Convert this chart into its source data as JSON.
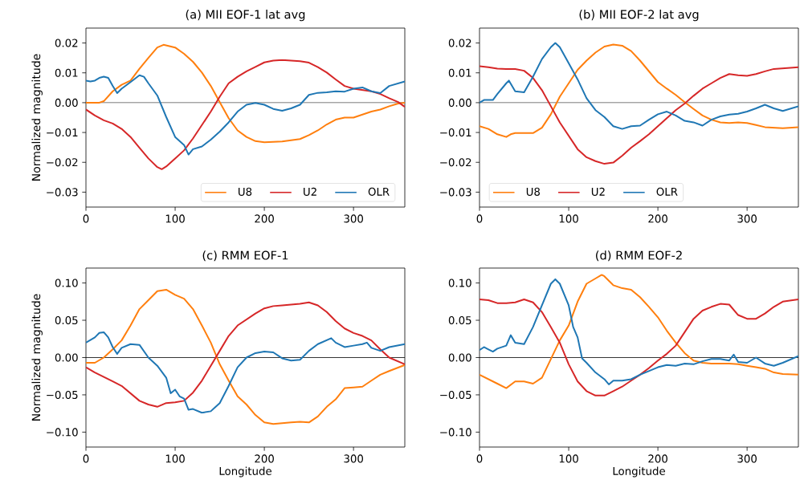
{
  "chart_data": [
    {
      "type": "line",
      "title": "(a) MII EOF-1 lat avg",
      "ylabel": "Normalized magnitude",
      "xlim": [
        0,
        357.5
      ],
      "ylim": [
        -0.035,
        0.025
      ],
      "xticks": [
        0,
        100,
        200,
        300
      ],
      "yticks": [
        {
          "value": -0.03,
          "label": "−0.03"
        },
        {
          "value": -0.02,
          "label": "−0.02"
        },
        {
          "value": -0.01,
          "label": "−0.01"
        },
        {
          "value": 0,
          "label": "0.00"
        },
        {
          "value": 0.01,
          "label": "0.01"
        },
        {
          "value": 0.02,
          "label": "0.02"
        }
      ],
      "legend": "bottom right",
      "ref_lines": [
        {
          "axis": "y",
          "value": 0,
          "color": "#000000"
        }
      ],
      "series": [
        {
          "name": "U8",
          "color": "#ff7f0e",
          "x": [
            0,
            15,
            20,
            30,
            40,
            50,
            60,
            70,
            80,
            87,
            100,
            110,
            120,
            130,
            140,
            150,
            160,
            170,
            180,
            190,
            200,
            220,
            240,
            250,
            260,
            270,
            280,
            290,
            300,
            310,
            320,
            330,
            340,
            350,
            357.5
          ],
          "values": [
            0.0,
            0.0,
            0.0005,
            0.0038,
            0.006,
            0.0074,
            0.0114,
            0.015,
            0.0185,
            0.0194,
            0.0185,
            0.0164,
            0.0137,
            0.0101,
            0.0056,
            0.0002,
            -0.0052,
            -0.0093,
            -0.0115,
            -0.0129,
            -0.0133,
            -0.013,
            -0.0122,
            -0.0109,
            -0.0093,
            -0.0073,
            -0.0057,
            -0.005,
            -0.005,
            -0.004,
            -0.003,
            -0.0023,
            -0.0012,
            -0.0003,
            0.0
          ]
        },
        {
          "name": "U2",
          "color": "#d62728",
          "x": [
            0,
            10,
            20,
            30,
            40,
            50,
            60,
            70,
            80,
            85,
            90,
            100,
            110,
            120,
            130,
            140,
            150,
            160,
            170,
            180,
            190,
            200,
            210,
            220,
            240,
            250,
            260,
            270,
            280,
            290,
            300,
            320,
            330,
            340,
            350,
            357.5
          ],
          "values": [
            -0.0023,
            -0.0043,
            -0.0059,
            -0.007,
            -0.0088,
            -0.0115,
            -0.0151,
            -0.0187,
            -0.0216,
            -0.0223,
            -0.0214,
            -0.0187,
            -0.016,
            -0.012,
            -0.0075,
            -0.003,
            0.002,
            0.0065,
            0.0087,
            0.0105,
            0.012,
            0.0135,
            0.0141,
            0.0143,
            0.0139,
            0.0134,
            0.0119,
            0.0101,
            0.0078,
            0.0056,
            0.0047,
            0.0038,
            0.0029,
            0.0015,
            0.0002,
            -0.0014
          ]
        },
        {
          "name": "OLR",
          "color": "#1f77b4",
          "x": [
            0,
            5,
            10,
            15,
            20,
            25,
            30,
            35,
            40,
            50,
            60,
            65,
            70,
            80,
            90,
            100,
            110,
            115,
            120,
            130,
            140,
            150,
            160,
            170,
            180,
            190,
            200,
            210,
            220,
            230,
            240,
            250,
            260,
            270,
            280,
            290,
            300,
            310,
            320,
            330,
            340,
            357.5
          ],
          "values": [
            0.0074,
            0.0071,
            0.0074,
            0.0083,
            0.0087,
            0.0083,
            0.0056,
            0.0032,
            0.0047,
            0.0069,
            0.0092,
            0.0087,
            0.0065,
            0.0024,
            -0.0048,
            -0.0115,
            -0.0142,
            -0.0174,
            -0.0156,
            -0.0147,
            -0.0124,
            -0.0097,
            -0.0066,
            -0.003,
            -0.0007,
            -0.0001,
            -0.0007,
            -0.0021,
            -0.0027,
            -0.0019,
            -0.0007,
            0.0026,
            0.0033,
            0.0035,
            0.0038,
            0.0037,
            0.0047,
            0.0051,
            0.0038,
            0.0032,
            0.0056,
            0.0071
          ]
        }
      ]
    },
    {
      "type": "line",
      "title": "(b) MII EOF-2 lat avg",
      "xlim": [
        0,
        357.5
      ],
      "ylim": [
        -0.035,
        0.025
      ],
      "xticks": [
        0,
        100,
        200,
        300
      ],
      "yticks": [
        {
          "value": -0.03,
          "label": "−0.03"
        },
        {
          "value": -0.02,
          "label": "−0.02"
        },
        {
          "value": -0.01,
          "label": "−0.01"
        },
        {
          "value": 0,
          "label": "0.00"
        },
        {
          "value": 0.01,
          "label": "0.01"
        },
        {
          "value": 0.02,
          "label": "0.02"
        }
      ],
      "legend": "bottom left",
      "ref_lines": [
        {
          "axis": "y",
          "value": 0,
          "color": "#000000"
        }
      ],
      "series": [
        {
          "name": "U8",
          "color": "#ff7f0e",
          "x": [
            0,
            10,
            20,
            30,
            35,
            40,
            50,
            60,
            70,
            80,
            90,
            100,
            110,
            120,
            130,
            140,
            150,
            160,
            170,
            180,
            190,
            200,
            210,
            220,
            230,
            240,
            250,
            260,
            270,
            280,
            290,
            300,
            310,
            320,
            340,
            357.5
          ],
          "values": [
            -0.0079,
            -0.0088,
            -0.0106,
            -0.0115,
            -0.0106,
            -0.0102,
            -0.0102,
            -0.0102,
            -0.0084,
            -0.0039,
            0.002,
            0.0065,
            0.011,
            0.0141,
            0.0168,
            0.0188,
            0.0195,
            0.0191,
            0.0173,
            0.0141,
            0.0105,
            0.0069,
            0.0047,
            0.0026,
            0.0002,
            -0.0021,
            -0.0043,
            -0.0057,
            -0.0066,
            -0.0068,
            -0.0066,
            -0.0068,
            -0.0075,
            -0.0082,
            -0.0086,
            -0.0082
          ]
        },
        {
          "name": "U2",
          "color": "#d62728",
          "x": [
            0,
            10,
            20,
            30,
            40,
            50,
            60,
            70,
            80,
            90,
            100,
            110,
            120,
            130,
            140,
            150,
            160,
            170,
            180,
            190,
            200,
            210,
            220,
            230,
            240,
            250,
            260,
            270,
            280,
            290,
            300,
            310,
            320,
            330,
            357.5
          ],
          "values": [
            0.0122,
            0.0119,
            0.0114,
            0.0113,
            0.0113,
            0.0107,
            0.0083,
            0.0042,
            -0.0012,
            -0.0066,
            -0.0111,
            -0.0156,
            -0.0183,
            -0.0196,
            -0.0205,
            -0.0201,
            -0.0178,
            -0.0151,
            -0.0129,
            -0.0106,
            -0.0079,
            -0.0052,
            -0.0025,
            -0.0003,
            0.0023,
            0.0047,
            0.0065,
            0.0083,
            0.0096,
            0.0092,
            0.009,
            0.0096,
            0.0105,
            0.0113,
            0.0119
          ]
        },
        {
          "name": "OLR",
          "color": "#1f77b4",
          "x": [
            0,
            5,
            15,
            20,
            30,
            33,
            40,
            50,
            60,
            70,
            80,
            85,
            90,
            100,
            110,
            120,
            130,
            140,
            150,
            160,
            170,
            180,
            190,
            200,
            210,
            220,
            230,
            240,
            250,
            260,
            270,
            280,
            290,
            300,
            310,
            320,
            330,
            340,
            357.5
          ],
          "values": [
            0.0,
            0.0009,
            0.0009,
            0.0029,
            0.0065,
            0.0074,
            0.0038,
            0.0035,
            0.0087,
            0.0146,
            0.0186,
            0.02,
            0.0186,
            0.0132,
            0.0078,
            0.0015,
            -0.0025,
            -0.0048,
            -0.0079,
            -0.0088,
            -0.0079,
            -0.0077,
            -0.0057,
            -0.0039,
            -0.003,
            -0.0043,
            -0.0061,
            -0.0066,
            -0.0077,
            -0.0057,
            -0.0046,
            -0.004,
            -0.0037,
            -0.003,
            -0.0019,
            -0.0007,
            -0.0019,
            -0.0028,
            -0.0012
          ]
        }
      ]
    },
    {
      "type": "line",
      "title": "(c) RMM EOF-1",
      "xlabel": "Longitude",
      "ylabel": "Normalized magnitude",
      "xlim": [
        0,
        357.5
      ],
      "ylim": [
        -0.12,
        0.12
      ],
      "xticks": [
        0,
        100,
        200,
        300
      ],
      "yticks": [
        {
          "value": -0.1,
          "label": "−0.10"
        },
        {
          "value": -0.05,
          "label": "−0.05"
        },
        {
          "value": 0,
          "label": "0.00"
        },
        {
          "value": 0.05,
          "label": "0.05"
        },
        {
          "value": 0.1,
          "label": "0.10"
        }
      ],
      "ref_lines": [
        {
          "axis": "y",
          "value": 0,
          "color": "#000000"
        }
      ],
      "series": [
        {
          "color": "#ff7f0e",
          "x": [
            0,
            10,
            20,
            30,
            40,
            50,
            60,
            70,
            80,
            90,
            100,
            110,
            120,
            130,
            140,
            150,
            160,
            170,
            180,
            190,
            200,
            210,
            230,
            240,
            250,
            260,
            270,
            280,
            290,
            300,
            310,
            320,
            330,
            340,
            357.5
          ],
          "values": [
            -0.007,
            -0.007,
            0.0,
            0.011,
            0.023,
            0.043,
            0.065,
            0.077,
            0.089,
            0.091,
            0.084,
            0.079,
            0.065,
            0.043,
            0.02,
            -0.009,
            -0.031,
            -0.052,
            -0.063,
            -0.077,
            -0.087,
            -0.089,
            -0.087,
            -0.086,
            -0.087,
            -0.079,
            -0.066,
            -0.056,
            -0.041,
            -0.04,
            -0.039,
            -0.031,
            -0.023,
            -0.018,
            -0.01
          ]
        },
        {
          "color": "#d62728",
          "x": [
            0,
            10,
            20,
            30,
            40,
            50,
            60,
            70,
            80,
            90,
            100,
            110,
            120,
            130,
            140,
            150,
            160,
            170,
            180,
            190,
            200,
            210,
            220,
            240,
            250,
            260,
            270,
            280,
            290,
            300,
            310,
            320,
            330,
            340,
            357.5
          ],
          "values": [
            -0.013,
            -0.02,
            -0.026,
            -0.032,
            -0.038,
            -0.048,
            -0.058,
            -0.063,
            -0.066,
            -0.061,
            -0.06,
            -0.058,
            -0.047,
            -0.031,
            -0.011,
            0.009,
            0.029,
            0.043,
            0.051,
            0.059,
            0.066,
            0.069,
            0.07,
            0.072,
            0.074,
            0.07,
            0.061,
            0.049,
            0.039,
            0.033,
            0.029,
            0.023,
            0.011,
            0.0,
            -0.009
          ]
        },
        {
          "color": "#1f77b4",
          "x": [
            0,
            10,
            15,
            20,
            25,
            30,
            35,
            40,
            50,
            60,
            70,
            80,
            90,
            95,
            100,
            105,
            110,
            115,
            120,
            130,
            140,
            150,
            160,
            170,
            180,
            190,
            200,
            210,
            220,
            230,
            240,
            250,
            260,
            275,
            280,
            290,
            300,
            310,
            315,
            320,
            330,
            340,
            357.5
          ],
          "values": [
            0.02,
            0.027,
            0.033,
            0.034,
            0.027,
            0.014,
            0.005,
            0.013,
            0.018,
            0.017,
            0.0,
            -0.011,
            -0.027,
            -0.048,
            -0.043,
            -0.052,
            -0.055,
            -0.07,
            -0.069,
            -0.074,
            -0.072,
            -0.061,
            -0.038,
            -0.013,
            0.0,
            0.006,
            0.008,
            0.007,
            -0.001,
            -0.004,
            -0.003,
            0.009,
            0.018,
            0.026,
            0.02,
            0.014,
            0.016,
            0.018,
            0.02,
            0.013,
            0.009,
            0.014,
            0.018
          ]
        }
      ]
    },
    {
      "type": "line",
      "title": "(d) RMM EOF-2",
      "xlabel": "Longitude",
      "xlim": [
        0,
        357.5
      ],
      "ylim": [
        -0.12,
        0.12
      ],
      "xticks": [
        0,
        100,
        200,
        300
      ],
      "yticks": [
        {
          "value": -0.1,
          "label": "−0.10"
        },
        {
          "value": -0.05,
          "label": "−0.05"
        },
        {
          "value": 0,
          "label": "0.00"
        },
        {
          "value": 0.05,
          "label": "0.05"
        },
        {
          "value": 0.1,
          "label": "0.10"
        }
      ],
      "ref_lines": [
        {
          "axis": "y",
          "value": 0,
          "color": "#000000"
        }
      ],
      "series": [
        {
          "color": "#ff7f0e",
          "x": [
            0,
            10,
            20,
            30,
            40,
            50,
            60,
            70,
            80,
            90,
            100,
            110,
            120,
            130,
            137,
            140,
            150,
            160,
            170,
            180,
            190,
            200,
            210,
            220,
            230,
            240,
            250,
            260,
            280,
            290,
            300,
            310,
            320,
            330,
            340,
            357.5
          ],
          "values": [
            -0.023,
            -0.029,
            -0.035,
            -0.041,
            -0.032,
            -0.032,
            -0.035,
            -0.027,
            -0.002,
            0.023,
            0.043,
            0.075,
            0.099,
            0.106,
            0.111,
            0.109,
            0.097,
            0.093,
            0.091,
            0.081,
            0.068,
            0.054,
            0.036,
            0.02,
            0.006,
            -0.004,
            -0.007,
            -0.008,
            -0.008,
            -0.009,
            -0.011,
            -0.013,
            -0.015,
            -0.02,
            -0.022,
            -0.023
          ]
        },
        {
          "color": "#d62728",
          "x": [
            0,
            10,
            20,
            30,
            40,
            50,
            60,
            70,
            80,
            90,
            100,
            110,
            120,
            130,
            140,
            150,
            160,
            170,
            180,
            190,
            200,
            210,
            220,
            230,
            240,
            250,
            260,
            270,
            280,
            290,
            300,
            310,
            320,
            330,
            340,
            357.5
          ],
          "values": [
            0.078,
            0.077,
            0.073,
            0.073,
            0.074,
            0.078,
            0.074,
            0.061,
            0.041,
            0.02,
            -0.009,
            -0.032,
            -0.045,
            -0.051,
            -0.051,
            -0.045,
            -0.039,
            -0.031,
            -0.023,
            -0.014,
            -0.004,
            0.005,
            0.016,
            0.034,
            0.052,
            0.063,
            0.068,
            0.072,
            0.071,
            0.057,
            0.052,
            0.052,
            0.059,
            0.068,
            0.075,
            0.078
          ]
        },
        {
          "color": "#1f77b4",
          "x": [
            0,
            5,
            10,
            15,
            20,
            30,
            35,
            40,
            50,
            60,
            70,
            80,
            85,
            90,
            100,
            105,
            110,
            115,
            120,
            130,
            140,
            145,
            150,
            160,
            170,
            180,
            190,
            200,
            210,
            220,
            230,
            240,
            250,
            260,
            270,
            280,
            285,
            290,
            300,
            310,
            320,
            330,
            340,
            357.5
          ],
          "values": [
            0.01,
            0.014,
            0.011,
            0.008,
            0.012,
            0.016,
            0.03,
            0.02,
            0.018,
            0.041,
            0.07,
            0.099,
            0.105,
            0.099,
            0.07,
            0.041,
            0.027,
            -0.001,
            -0.007,
            -0.02,
            -0.029,
            -0.036,
            -0.031,
            -0.031,
            -0.029,
            -0.023,
            -0.018,
            -0.013,
            -0.01,
            -0.011,
            -0.008,
            -0.009,
            -0.005,
            -0.002,
            -0.002,
            -0.004,
            0.004,
            -0.006,
            -0.007,
            0.0,
            -0.008,
            -0.011,
            -0.007,
            0.002
          ]
        }
      ]
    }
  ]
}
